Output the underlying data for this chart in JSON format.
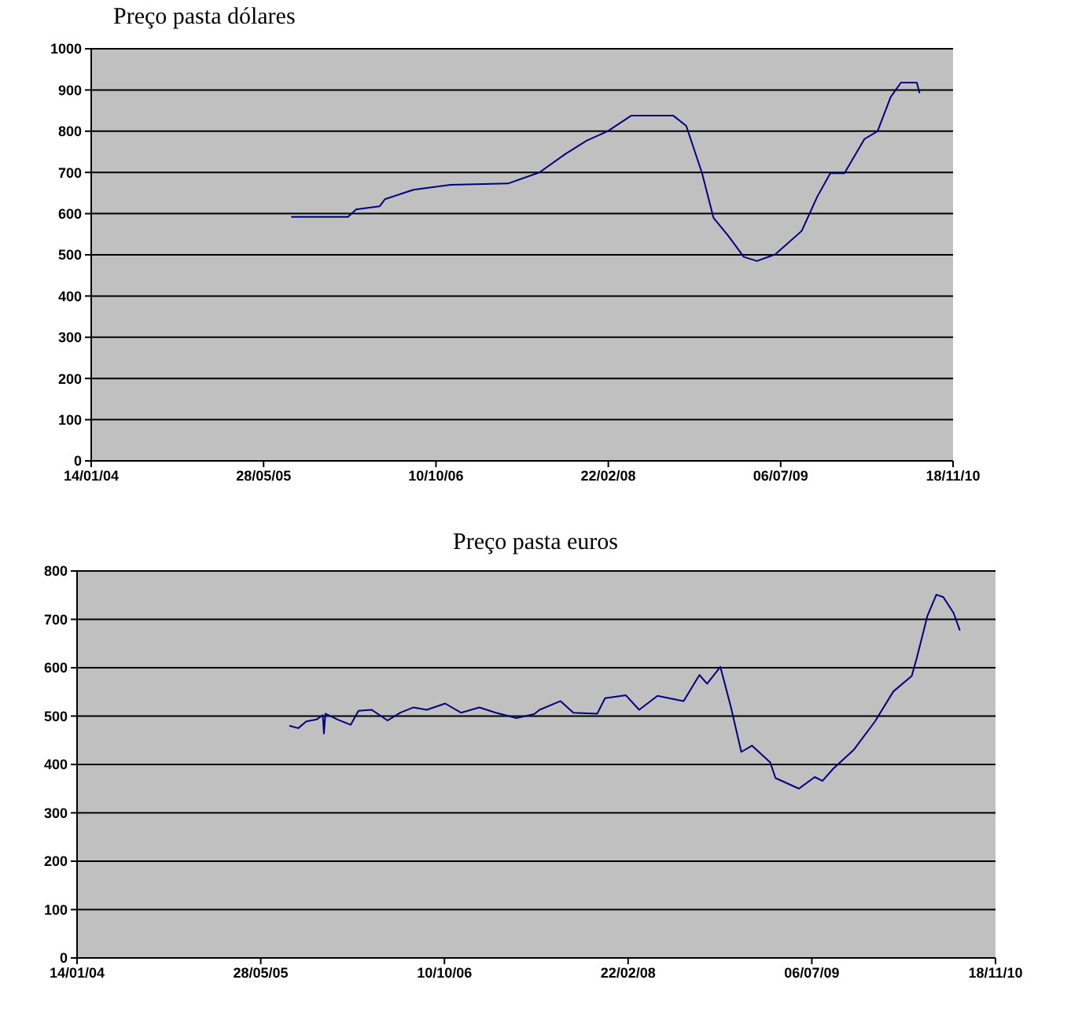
{
  "chart_data": [
    {
      "type": "line",
      "title": "Preço pasta dólares",
      "grid": "y",
      "x": [
        "2005-08-16",
        "2006-01-28",
        "2006-02-20",
        "2006-04-30",
        "2006-05-15",
        "2006-08-06",
        "2006-11-21",
        "2007-05-07",
        "2007-08-06",
        "2007-10-21",
        "2007-12-21",
        "2008-02-20",
        "2008-04-29",
        "2008-08-28",
        "2008-10-05",
        "2008-11-20",
        "2008-12-23",
        "2009-02-04",
        "2009-03-21",
        "2009-04-28",
        "2009-06-20",
        "2009-09-05",
        "2009-10-20",
        "2009-11-27",
        "2010-01-07",
        "2010-03-06",
        "2010-04-13",
        "2010-05-21",
        "2010-06-20",
        "2010-08-05",
        "2010-08-13"
      ],
      "series": [
        {
          "color": "#000080",
          "values": [
            592,
            592,
            610,
            618,
            635,
            658,
            670,
            673,
            700,
            745,
            777,
            800,
            838,
            838,
            813,
            698,
            590,
            546,
            495,
            485,
            501,
            558,
            641,
            698,
            698,
            781,
            800,
            883,
            918,
            918,
            892
          ]
        }
      ],
      "xlim": [
        "2004-01-14",
        "2010-11-18"
      ],
      "xticks": [
        {
          "value": "2004-01-14",
          "label": "14/01/04"
        },
        {
          "value": "2005-05-28",
          "label": "28/05/05"
        },
        {
          "value": "2006-10-10",
          "label": "10/10/06"
        },
        {
          "value": "2008-02-22",
          "label": "22/02/08"
        },
        {
          "value": "2009-07-06",
          "label": "06/07/09"
        },
        {
          "value": "2010-11-18",
          "label": "18/11/10"
        }
      ],
      "ylim": [
        0,
        1000
      ],
      "yticks": [
        0,
        100,
        200,
        300,
        400,
        500,
        600,
        700,
        800,
        900,
        1000
      ]
    },
    {
      "type": "line",
      "title": "Preço pasta euros",
      "grid": "y",
      "x": [
        "2005-08-14",
        "2005-09-07",
        "2005-09-29",
        "2005-10-27",
        "2005-11-13",
        "2005-11-16",
        "2005-11-20",
        "2005-12-23",
        "2006-01-28",
        "2006-02-18",
        "2006-03-26",
        "2006-05-08",
        "2006-06-12",
        "2006-07-18",
        "2006-08-23",
        "2006-10-12",
        "2006-11-24",
        "2007-01-13",
        "2007-02-27",
        "2007-04-24",
        "2007-06-11",
        "2007-06-26",
        "2007-08-22",
        "2007-09-26",
        "2007-11-30",
        "2007-12-21",
        "2008-02-16",
        "2008-03-23",
        "2008-05-12",
        "2008-07-22",
        "2008-09-03",
        "2008-09-24",
        "2008-10-30",
        "2008-11-28",
        "2008-12-26",
        "2009-01-24",
        "2009-03-15",
        "2009-03-29",
        "2009-06-01",
        "2009-07-14",
        "2009-08-04",
        "2009-09-02",
        "2009-10-29",
        "2009-12-25",
        "2010-02-13",
        "2010-04-04",
        "2010-04-18",
        "2010-05-17",
        "2010-06-10",
        "2010-06-29",
        "2010-07-27",
        "2010-08-13"
      ],
      "series": [
        {
          "color": "#000080",
          "values": [
            480,
            475,
            489,
            493,
            502,
            464,
            505,
            493,
            482,
            511,
            513,
            491,
            507,
            518,
            513,
            526,
            507,
            518,
            507,
            496,
            504,
            513,
            531,
            507,
            505,
            537,
            543,
            513,
            542,
            531,
            585,
            567,
            602,
            518,
            426,
            439,
            404,
            372,
            350,
            374,
            366,
            391,
            431,
            489,
            551,
            583,
            621,
            708,
            751,
            746,
            713,
            677
          ]
        }
      ],
      "xlim": [
        "2004-01-14",
        "2010-11-18"
      ],
      "xticks": [
        {
          "value": "2004-01-14",
          "label": "14/01/04"
        },
        {
          "value": "2005-05-28",
          "label": "28/05/05"
        },
        {
          "value": "2006-10-10",
          "label": "10/10/06"
        },
        {
          "value": "2008-02-22",
          "label": "22/02/08"
        },
        {
          "value": "2009-07-06",
          "label": "06/07/09"
        },
        {
          "value": "2010-11-18",
          "label": "18/11/10"
        }
      ],
      "ylim": [
        0,
        800
      ],
      "yticks": [
        0,
        100,
        200,
        300,
        400,
        500,
        600,
        700,
        800
      ]
    }
  ]
}
